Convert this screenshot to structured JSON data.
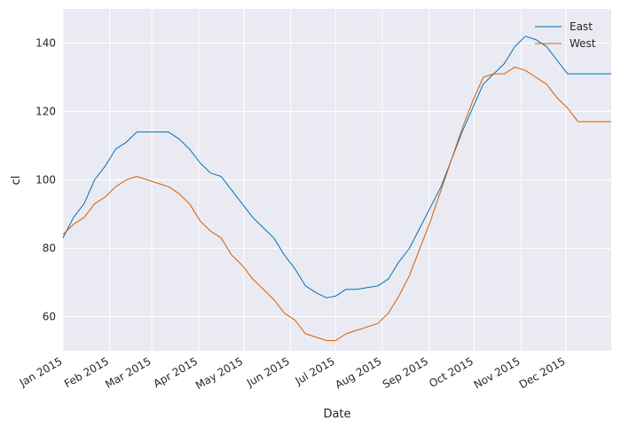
{
  "chart_data": {
    "type": "line",
    "xlabel": "Date",
    "ylabel": "cl",
    "xlim": [
      "2015-01-01",
      "2015-12-31"
    ],
    "ylim": [
      50,
      150
    ],
    "x_ticks": [
      {
        "date": "2015-01-01",
        "label": "Jan 2015"
      },
      {
        "date": "2015-02-01",
        "label": "Feb 2015"
      },
      {
        "date": "2015-03-01",
        "label": "Mar 2015"
      },
      {
        "date": "2015-04-01",
        "label": "Apr 2015"
      },
      {
        "date": "2015-05-01",
        "label": "May 2015"
      },
      {
        "date": "2015-06-01",
        "label": "Jun 2015"
      },
      {
        "date": "2015-07-01",
        "label": "Jul 2015"
      },
      {
        "date": "2015-08-01",
        "label": "Aug 2015"
      },
      {
        "date": "2015-09-01",
        "label": "Sep 2015"
      },
      {
        "date": "2015-10-01",
        "label": "Oct 2015"
      },
      {
        "date": "2015-11-01",
        "label": "Nov 2015"
      },
      {
        "date": "2015-12-01",
        "label": "Dec 2015"
      }
    ],
    "y_ticks": [
      60,
      80,
      100,
      120,
      140
    ],
    "grid": true,
    "legend_position": "top-right",
    "series": [
      {
        "name": "East",
        "color": "#0072B2",
        "x": [
          "2015-01-01",
          "2015-01-08",
          "2015-01-15",
          "2015-01-22",
          "2015-01-29",
          "2015-02-05",
          "2015-02-12",
          "2015-02-19",
          "2015-02-26",
          "2015-03-05",
          "2015-03-12",
          "2015-03-19",
          "2015-03-26",
          "2015-04-02",
          "2015-04-09",
          "2015-04-16",
          "2015-04-23",
          "2015-04-30",
          "2015-05-07",
          "2015-05-14",
          "2015-05-21",
          "2015-05-28",
          "2015-06-04",
          "2015-06-11",
          "2015-06-18",
          "2015-06-25",
          "2015-07-01",
          "2015-07-08",
          "2015-07-15",
          "2015-07-22",
          "2015-07-29",
          "2015-08-05",
          "2015-08-12",
          "2015-08-19",
          "2015-08-26",
          "2015-09-02",
          "2015-09-09",
          "2015-09-16",
          "2015-09-23",
          "2015-09-30",
          "2015-10-07",
          "2015-10-14",
          "2015-10-21",
          "2015-10-28",
          "2015-11-04",
          "2015-11-11",
          "2015-11-18",
          "2015-11-25",
          "2015-12-02",
          "2015-12-09",
          "2015-12-16",
          "2015-12-23",
          "2015-12-31"
        ],
        "values": [
          83,
          89,
          93,
          100,
          104,
          109,
          111,
          114,
          114,
          114,
          114,
          112,
          109,
          105,
          102,
          101,
          97,
          93,
          89,
          86,
          83,
          78,
          74,
          69,
          67,
          65.5,
          66,
          68,
          68,
          68.5,
          69,
          71,
          76,
          80,
          86,
          92,
          98,
          106,
          114,
          121,
          128,
          131,
          134,
          139,
          142,
          141,
          139,
          135,
          131,
          131,
          131,
          131,
          131
        ]
      },
      {
        "name": "West",
        "color": "#D55E00",
        "x": [
          "2015-01-01",
          "2015-01-08",
          "2015-01-15",
          "2015-01-22",
          "2015-01-29",
          "2015-02-05",
          "2015-02-12",
          "2015-02-19",
          "2015-02-26",
          "2015-03-05",
          "2015-03-12",
          "2015-03-19",
          "2015-03-26",
          "2015-04-02",
          "2015-04-09",
          "2015-04-16",
          "2015-04-23",
          "2015-04-30",
          "2015-05-07",
          "2015-05-14",
          "2015-05-21",
          "2015-05-28",
          "2015-06-04",
          "2015-06-11",
          "2015-06-18",
          "2015-06-25",
          "2015-07-01",
          "2015-07-08",
          "2015-07-15",
          "2015-07-22",
          "2015-07-29",
          "2015-08-05",
          "2015-08-12",
          "2015-08-19",
          "2015-08-26",
          "2015-09-02",
          "2015-09-09",
          "2015-09-16",
          "2015-09-23",
          "2015-09-30",
          "2015-10-07",
          "2015-10-14",
          "2015-10-21",
          "2015-10-28",
          "2015-11-04",
          "2015-11-11",
          "2015-11-18",
          "2015-11-25",
          "2015-12-02",
          "2015-12-09",
          "2015-12-16",
          "2015-12-23",
          "2015-12-31"
        ],
        "values": [
          84,
          87,
          89,
          93,
          95,
          98,
          100,
          101,
          100,
          99,
          98,
          96,
          93,
          88,
          85,
          83,
          78,
          75,
          71,
          68,
          65,
          61,
          59,
          55,
          54,
          53,
          53,
          55,
          56,
          57,
          58,
          61,
          66,
          72,
          80,
          88,
          97,
          106,
          115,
          123,
          130,
          131,
          131,
          133,
          132,
          130,
          128,
          124,
          121,
          117,
          117,
          117,
          117
        ]
      }
    ]
  }
}
